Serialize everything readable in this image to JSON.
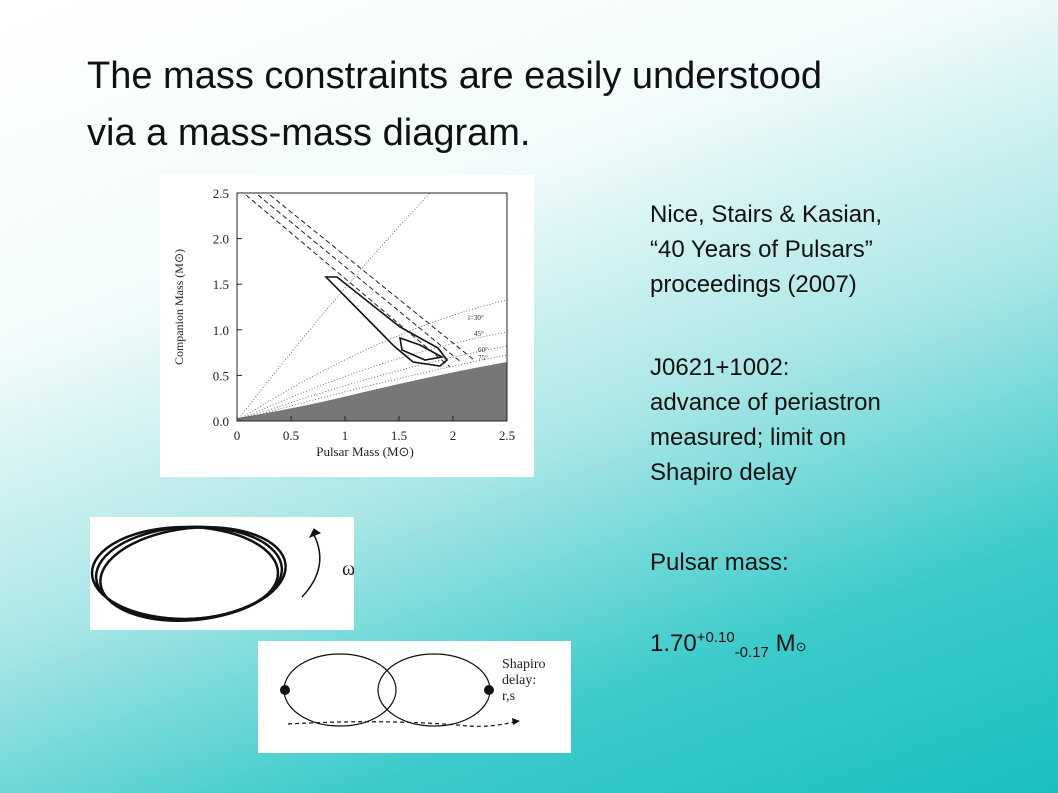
{
  "title": [
    "The mass constraints are easily understood",
    "via a mass-mass diagram."
  ],
  "figure": {
    "y_axis_label": "Companion Mass (M⊙)",
    "x_axis_label": "Pulsar Mass (M⊙)",
    "x_ticks": [
      "0",
      "0.5",
      "1",
      "1.5",
      "2",
      "2.5"
    ],
    "y_ticks": [
      "0.0",
      "0.5",
      "1.0",
      "1.5",
      "2.0",
      "2.5"
    ],
    "inclination_labels": [
      "i=30°",
      "45°",
      "60°",
      "75°"
    ]
  },
  "orbit_diagram": {
    "label": "ω̇"
  },
  "shapiro_diagram": {
    "label": [
      "Shapiro",
      "delay:",
      "r,s"
    ]
  },
  "notes": {
    "reference": [
      "Nice, Stairs & Kasian,",
      "“40 Years of Pulsars”",
      "proceedings (2007)"
    ],
    "measurement": [
      "J0621+1002:",
      "advance of periastron",
      "measured; limit on",
      "Shapiro delay"
    ],
    "result_label": "Pulsar mass:",
    "result": {
      "value": "1.70",
      "plus": "+0.10",
      "minus": "-0.17",
      "unit": "M",
      "symbol": "⊙"
    }
  }
}
